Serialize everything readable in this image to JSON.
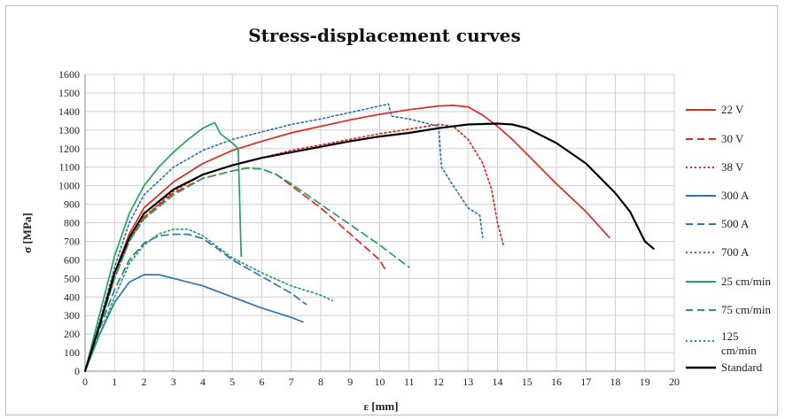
{
  "chart_data": {
    "type": "line",
    "title": "Stress-displacement curves",
    "xlabel": "ε [mm]",
    "ylabel": "σ [MPa]",
    "xlim": [
      0,
      20
    ],
    "ylim": [
      0,
      1600
    ],
    "xticks": [
      0,
      1,
      2,
      3,
      4,
      5,
      6,
      7,
      8,
      9,
      10,
      11,
      12,
      13,
      14,
      15,
      16,
      17,
      18,
      19,
      20
    ],
    "yticks": [
      0,
      100,
      200,
      300,
      400,
      500,
      600,
      700,
      800,
      900,
      1000,
      1100,
      1200,
      1300,
      1400,
      1500,
      1600
    ],
    "grid": true,
    "legend_position": "right",
    "series": [
      {
        "name": "22 V",
        "color": "#e0291f",
        "dash": "solid",
        "points": [
          [
            0,
            0
          ],
          [
            0.5,
            260
          ],
          [
            1,
            530
          ],
          [
            1.5,
            740
          ],
          [
            2,
            880
          ],
          [
            3,
            1020
          ],
          [
            4,
            1120
          ],
          [
            5,
            1190
          ],
          [
            6,
            1240
          ],
          [
            7,
            1285
          ],
          [
            8,
            1320
          ],
          [
            9,
            1355
          ],
          [
            10,
            1385
          ],
          [
            11,
            1410
          ],
          [
            12,
            1430
          ],
          [
            12.5,
            1433
          ],
          [
            13,
            1425
          ],
          [
            13.5,
            1380
          ],
          [
            14,
            1320
          ],
          [
            14.5,
            1250
          ],
          [
            15,
            1170
          ],
          [
            16,
            1010
          ],
          [
            17,
            860
          ],
          [
            17.8,
            720
          ]
        ]
      },
      {
        "name": "30 V",
        "color": "#e0291f",
        "dash": "dashed",
        "points": [
          [
            0,
            0
          ],
          [
            0.5,
            250
          ],
          [
            1,
            500
          ],
          [
            1.5,
            700
          ],
          [
            2,
            830
          ],
          [
            3,
            960
          ],
          [
            4,
            1040
          ],
          [
            5,
            1080
          ],
          [
            5.5,
            1095
          ],
          [
            6,
            1090
          ],
          [
            6.5,
            1060
          ],
          [
            7,
            1000
          ],
          [
            8,
            880
          ],
          [
            9,
            740
          ],
          [
            10,
            600
          ],
          [
            10.2,
            545
          ]
        ]
      },
      {
        "name": "38 V",
        "color": "#e0291f",
        "dash": "dotted",
        "points": [
          [
            0,
            0
          ],
          [
            0.5,
            250
          ],
          [
            1,
            500
          ],
          [
            1.5,
            700
          ],
          [
            2,
            830
          ],
          [
            3,
            970
          ],
          [
            4,
            1060
          ],
          [
            5,
            1110
          ],
          [
            6,
            1150
          ],
          [
            7,
            1190
          ],
          [
            8,
            1220
          ],
          [
            9,
            1250
          ],
          [
            10,
            1280
          ],
          [
            11,
            1305
          ],
          [
            12,
            1330
          ],
          [
            12.5,
            1320
          ],
          [
            13,
            1250
          ],
          [
            13.5,
            1120
          ],
          [
            13.8,
            980
          ],
          [
            14,
            800
          ],
          [
            14.2,
            680
          ]
        ]
      },
      {
        "name": "300 A",
        "color": "#2e75b6",
        "dash": "solid",
        "points": [
          [
            0,
            0
          ],
          [
            0.5,
            200
          ],
          [
            1,
            370
          ],
          [
            1.5,
            480
          ],
          [
            2,
            520
          ],
          [
            2.5,
            520
          ],
          [
            3,
            500
          ],
          [
            4,
            460
          ],
          [
            5,
            400
          ],
          [
            6,
            340
          ],
          [
            7,
            290
          ],
          [
            7.4,
            265
          ]
        ]
      },
      {
        "name": "500 A",
        "color": "#2e75b6",
        "dash": "dashed",
        "points": [
          [
            0,
            0
          ],
          [
            0.5,
            230
          ],
          [
            1,
            440
          ],
          [
            1.5,
            600
          ],
          [
            2,
            690
          ],
          [
            2.5,
            730
          ],
          [
            3,
            738
          ],
          [
            3.5,
            738
          ],
          [
            4,
            715
          ],
          [
            4.5,
            660
          ],
          [
            5,
            600
          ],
          [
            6,
            510
          ],
          [
            7,
            420
          ],
          [
            7.5,
            360
          ]
        ]
      },
      {
        "name": "700 A",
        "color": "#2e75b6",
        "dash": "dotted",
        "points": [
          [
            0,
            0
          ],
          [
            0.5,
            270
          ],
          [
            1,
            560
          ],
          [
            1.5,
            800
          ],
          [
            2,
            950
          ],
          [
            3,
            1100
          ],
          [
            4,
            1190
          ],
          [
            5,
            1250
          ],
          [
            6,
            1290
          ],
          [
            7,
            1330
          ],
          [
            8,
            1360
          ],
          [
            9,
            1395
          ],
          [
            10,
            1430
          ],
          [
            10.3,
            1440
          ],
          [
            10.4,
            1375
          ],
          [
            11,
            1360
          ],
          [
            12,
            1320
          ],
          [
            12.1,
            1100
          ],
          [
            12.5,
            1000
          ],
          [
            13,
            880
          ],
          [
            13.4,
            840
          ],
          [
            13.5,
            720
          ]
        ]
      },
      {
        "name": "25 cm/min",
        "color": "#23a45a",
        "dash": "solid",
        "points": [
          [
            0,
            0
          ],
          [
            0.5,
            310
          ],
          [
            1,
            620
          ],
          [
            1.5,
            850
          ],
          [
            2,
            1000
          ],
          [
            2.5,
            1100
          ],
          [
            3,
            1180
          ],
          [
            3.5,
            1250
          ],
          [
            4,
            1310
          ],
          [
            4.4,
            1340
          ],
          [
            4.6,
            1280
          ],
          [
            5,
            1230
          ],
          [
            5.2,
            1200
          ],
          [
            5.3,
            620
          ]
        ]
      },
      {
        "name": "75 cm/min",
        "color": "#23a45a",
        "dash": "dashed",
        "points": [
          [
            0,
            0
          ],
          [
            0.5,
            250
          ],
          [
            1,
            500
          ],
          [
            1.5,
            700
          ],
          [
            2,
            820
          ],
          [
            3,
            950
          ],
          [
            4,
            1040
          ],
          [
            5,
            1080
          ],
          [
            5.5,
            1095
          ],
          [
            6,
            1090
          ],
          [
            6.5,
            1060
          ],
          [
            7,
            1010
          ],
          [
            8,
            900
          ],
          [
            9,
            790
          ],
          [
            10,
            680
          ],
          [
            11,
            560
          ]
        ]
      },
      {
        "name": "125 cm/min",
        "color": "#23a45a",
        "dash": "dotted",
        "points": [
          [
            0,
            0
          ],
          [
            0.5,
            200
          ],
          [
            1,
            400
          ],
          [
            1.5,
            580
          ],
          [
            2,
            680
          ],
          [
            2.5,
            740
          ],
          [
            3,
            765
          ],
          [
            3.5,
            765
          ],
          [
            4,
            730
          ],
          [
            4.5,
            670
          ],
          [
            5,
            610
          ],
          [
            6,
            530
          ],
          [
            7,
            460
          ],
          [
            8,
            410
          ],
          [
            8.4,
            380
          ]
        ]
      },
      {
        "name": "Standard",
        "color": "#000000",
        "dash": "solid",
        "points": [
          [
            0,
            0
          ],
          [
            0.5,
            250
          ],
          [
            1,
            530
          ],
          [
            1.5,
            720
          ],
          [
            2,
            850
          ],
          [
            3,
            980
          ],
          [
            4,
            1060
          ],
          [
            5,
            1110
          ],
          [
            6,
            1150
          ],
          [
            7,
            1180
          ],
          [
            8,
            1210
          ],
          [
            9,
            1240
          ],
          [
            10,
            1265
          ],
          [
            11,
            1285
          ],
          [
            12,
            1310
          ],
          [
            13,
            1330
          ],
          [
            14,
            1335
          ],
          [
            14.5,
            1330
          ],
          [
            15,
            1310
          ],
          [
            16,
            1230
          ],
          [
            17,
            1120
          ],
          [
            18,
            960
          ],
          [
            18.5,
            860
          ],
          [
            19,
            700
          ],
          [
            19.3,
            660
          ]
        ]
      }
    ]
  }
}
